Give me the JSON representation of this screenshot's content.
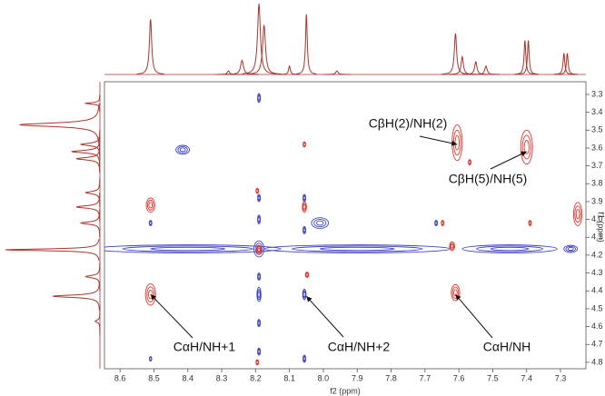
{
  "chart_data": {
    "type": "contour",
    "xlabel": "f2 (ppm)",
    "ylabel": "f1 (ppm)",
    "xlim": [
      8.646,
      7.225
    ],
    "ylim": [
      3.229,
      4.836
    ],
    "xticks": [
      8.6,
      8.5,
      8.4,
      8.3,
      8.2,
      8.1,
      {
        "value": 8,
        "label": "8.0"
      },
      7.9,
      7.8,
      7.7,
      7.6,
      7.5,
      7.4,
      7.3
    ],
    "yticks": [
      3.3,
      3.4,
      3.5,
      3.6,
      3.7,
      3.8,
      3.9,
      {
        "value": 4,
        "label": "4.0"
      },
      4.1,
      4.2,
      4.3,
      4.4,
      4.5,
      4.6,
      4.7,
      4.8
    ],
    "positive_color": "#dc3a30",
    "negative_color": "#3f42c0",
    "projection_color": "#a8352c",
    "positive_peaks": [
      {
        "x": 7.605,
        "y": 3.57,
        "wx": 0.03,
        "wy": 0.2
      },
      {
        "x": 7.4,
        "y": 3.595,
        "wx": 0.035,
        "wy": 0.19
      },
      {
        "x": 8.51,
        "y": 3.92,
        "wx": 0.025,
        "wy": 0.08
      },
      {
        "x": 8.51,
        "y": 4.42,
        "wx": 0.03,
        "wy": 0.12
      },
      {
        "x": 7.61,
        "y": 4.41,
        "wx": 0.025,
        "wy": 0.09
      },
      {
        "x": 7.249,
        "y": 3.97,
        "wx": 0.025,
        "wy": 0.13
      },
      {
        "x": 8.056,
        "y": 3.93,
        "wx": 0.012,
        "wy": 0.06
      },
      {
        "x": 8.056,
        "y": 3.58,
        "wx": 0.008,
        "wy": 0.03
      },
      {
        "x": 8.195,
        "y": 3.84,
        "wx": 0.008,
        "wy": 0.03
      },
      {
        "x": 7.568,
        "y": 3.68,
        "wx": 0.008,
        "wy": 0.03
      },
      {
        "x": 7.648,
        "y": 4.02,
        "wx": 0.008,
        "wy": 0.03
      },
      {
        "x": 7.39,
        "y": 4.02,
        "wx": 0.008,
        "wy": 0.03
      },
      {
        "x": 8.048,
        "y": 4.31,
        "wx": 0.01,
        "wy": 0.03
      },
      {
        "x": 8.195,
        "y": 4.8,
        "wx": 0.008,
        "wy": 0.03
      },
      {
        "x": 8.19,
        "y": 4.17,
        "wx": 0.015,
        "wy": 0.05
      },
      {
        "x": 7.62,
        "y": 4.15,
        "wx": 0.015,
        "wy": 0.05
      }
    ],
    "negative_peaks": [
      {
        "x": 8.4,
        "y": 4.165,
        "wx": 0.55,
        "wy": 0.045
      },
      {
        "x": 8.19,
        "y": 4.165,
        "wx": 0.03,
        "wy": 0.09
      },
      {
        "x": 7.9,
        "y": 4.165,
        "wx": 0.55,
        "wy": 0.045
      },
      {
        "x": 7.45,
        "y": 4.165,
        "wx": 0.28,
        "wy": 0.045
      },
      {
        "x": 7.27,
        "y": 4.165,
        "wx": 0.04,
        "wy": 0.04
      },
      {
        "x": 8.19,
        "y": 3.32,
        "wx": 0.008,
        "wy": 0.05
      },
      {
        "x": 8.19,
        "y": 3.88,
        "wx": 0.008,
        "wy": 0.04
      },
      {
        "x": 8.19,
        "y": 4.0,
        "wx": 0.008,
        "wy": 0.05
      },
      {
        "x": 8.19,
        "y": 4.32,
        "wx": 0.008,
        "wy": 0.04
      },
      {
        "x": 8.19,
        "y": 4.42,
        "wx": 0.012,
        "wy": 0.08
      },
      {
        "x": 8.19,
        "y": 4.58,
        "wx": 0.008,
        "wy": 0.04
      },
      {
        "x": 8.19,
        "y": 4.74,
        "wx": 0.008,
        "wy": 0.04
      },
      {
        "x": 8.056,
        "y": 3.88,
        "wx": 0.008,
        "wy": 0.04
      },
      {
        "x": 8.056,
        "y": 4.06,
        "wx": 0.008,
        "wy": 0.04
      },
      {
        "x": 8.056,
        "y": 4.42,
        "wx": 0.01,
        "wy": 0.06
      },
      {
        "x": 8.056,
        "y": 4.78,
        "wx": 0.008,
        "wy": 0.04
      },
      {
        "x": 8.415,
        "y": 3.61,
        "wx": 0.04,
        "wy": 0.05
      },
      {
        "x": 8.01,
        "y": 4.02,
        "wx": 0.05,
        "wy": 0.06
      },
      {
        "x": 8.51,
        "y": 4.02,
        "wx": 0.008,
        "wy": 0.03
      },
      {
        "x": 8.51,
        "y": 4.78,
        "wx": 0.006,
        "wy": 0.025
      },
      {
        "x": 7.667,
        "y": 4.02,
        "wx": 0.008,
        "wy": 0.03
      }
    ],
    "f2_projection": [
      {
        "x": 8.51,
        "height": 0.78,
        "w": 0.004
      },
      {
        "x": 8.28,
        "height": 0.05,
        "w": 0.004
      },
      {
        "x": 8.24,
        "height": 0.2,
        "w": 0.005
      },
      {
        "x": 8.19,
        "height": 1.0,
        "w": 0.005
      },
      {
        "x": 8.175,
        "height": 0.7,
        "w": 0.005
      },
      {
        "x": 8.1,
        "height": 0.12,
        "w": 0.003
      },
      {
        "x": 8.05,
        "height": 0.85,
        "w": 0.003
      },
      {
        "x": 7.96,
        "height": 0.05,
        "w": 0.004
      },
      {
        "x": 7.61,
        "height": 0.58,
        "w": 0.004
      },
      {
        "x": 7.59,
        "height": 0.25,
        "w": 0.004
      },
      {
        "x": 7.55,
        "height": 0.18,
        "w": 0.004
      },
      {
        "x": 7.52,
        "height": 0.12,
        "w": 0.004
      },
      {
        "x": 7.405,
        "height": 0.48,
        "w": 0.003
      },
      {
        "x": 7.395,
        "height": 0.48,
        "w": 0.003
      },
      {
        "x": 7.29,
        "height": 0.3,
        "w": 0.003
      },
      {
        "x": 7.28,
        "height": 0.3,
        "w": 0.003
      }
    ],
    "f1_projection": [
      {
        "y": 3.35,
        "height": 0.15,
        "w": 0.005
      },
      {
        "y": 3.47,
        "height": 0.85,
        "w": 0.012
      },
      {
        "y": 3.58,
        "height": 0.2,
        "w": 0.008
      },
      {
        "y": 3.62,
        "height": 0.3,
        "w": 0.008
      },
      {
        "y": 3.66,
        "height": 0.25,
        "w": 0.008
      },
      {
        "y": 3.85,
        "height": 0.15,
        "w": 0.008
      },
      {
        "y": 3.93,
        "height": 0.25,
        "w": 0.008
      },
      {
        "y": 4.02,
        "height": 0.2,
        "w": 0.008
      },
      {
        "y": 4.17,
        "height": 1.0,
        "w": 0.006
      },
      {
        "y": 4.32,
        "height": 0.15,
        "w": 0.008
      },
      {
        "y": 4.43,
        "height": 0.5,
        "w": 0.008
      },
      {
        "y": 4.57,
        "height": 0.05,
        "w": 0.008
      }
    ],
    "annotations": [
      {
        "text": "CβH(2)/NH(2)",
        "x": 7.605,
        "y": 3.58
      },
      {
        "text": "CβH(5)/NH(5)",
        "x": 7.4,
        "y": 3.62
      },
      {
        "text": "CαH/NH+1",
        "x": 8.51,
        "y": 4.42
      },
      {
        "text": "CαH/NH+2",
        "x": 8.05,
        "y": 4.43
      },
      {
        "text": "CαH/NH",
        "x": 7.61,
        "y": 4.42
      }
    ]
  }
}
